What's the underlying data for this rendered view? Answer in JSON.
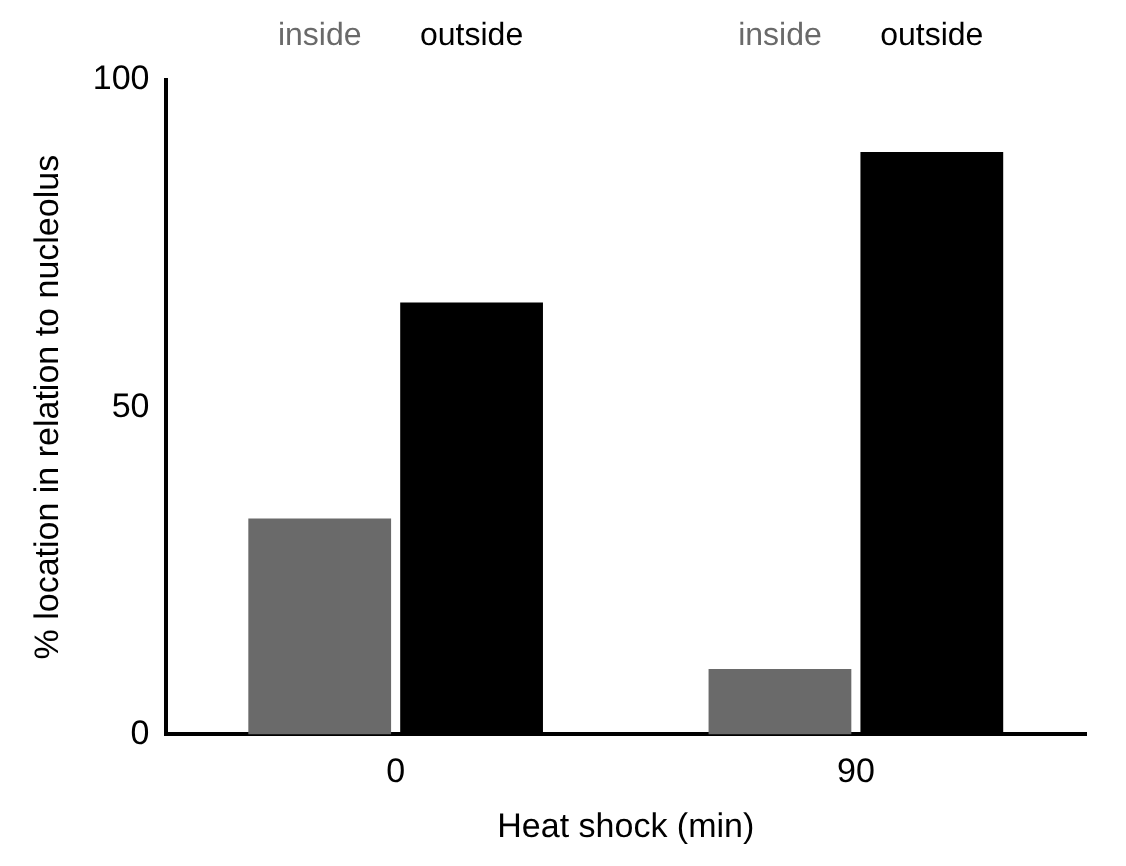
{
  "chart_data": {
    "type": "bar",
    "xlabel": "Heat shock (min)",
    "ylabel": "% location in relation to nucleolus",
    "categories": [
      "0",
      "90"
    ],
    "series": [
      {
        "name": "inside",
        "color": "#6a6a6a",
        "values": [
          33,
          10
        ]
      },
      {
        "name": "outside",
        "color": "#000000",
        "values": [
          66,
          89
        ]
      }
    ],
    "ylim": [
      0,
      100
    ],
    "yticks": [
      0,
      50,
      100
    ],
    "grid": false,
    "legend": false
  }
}
